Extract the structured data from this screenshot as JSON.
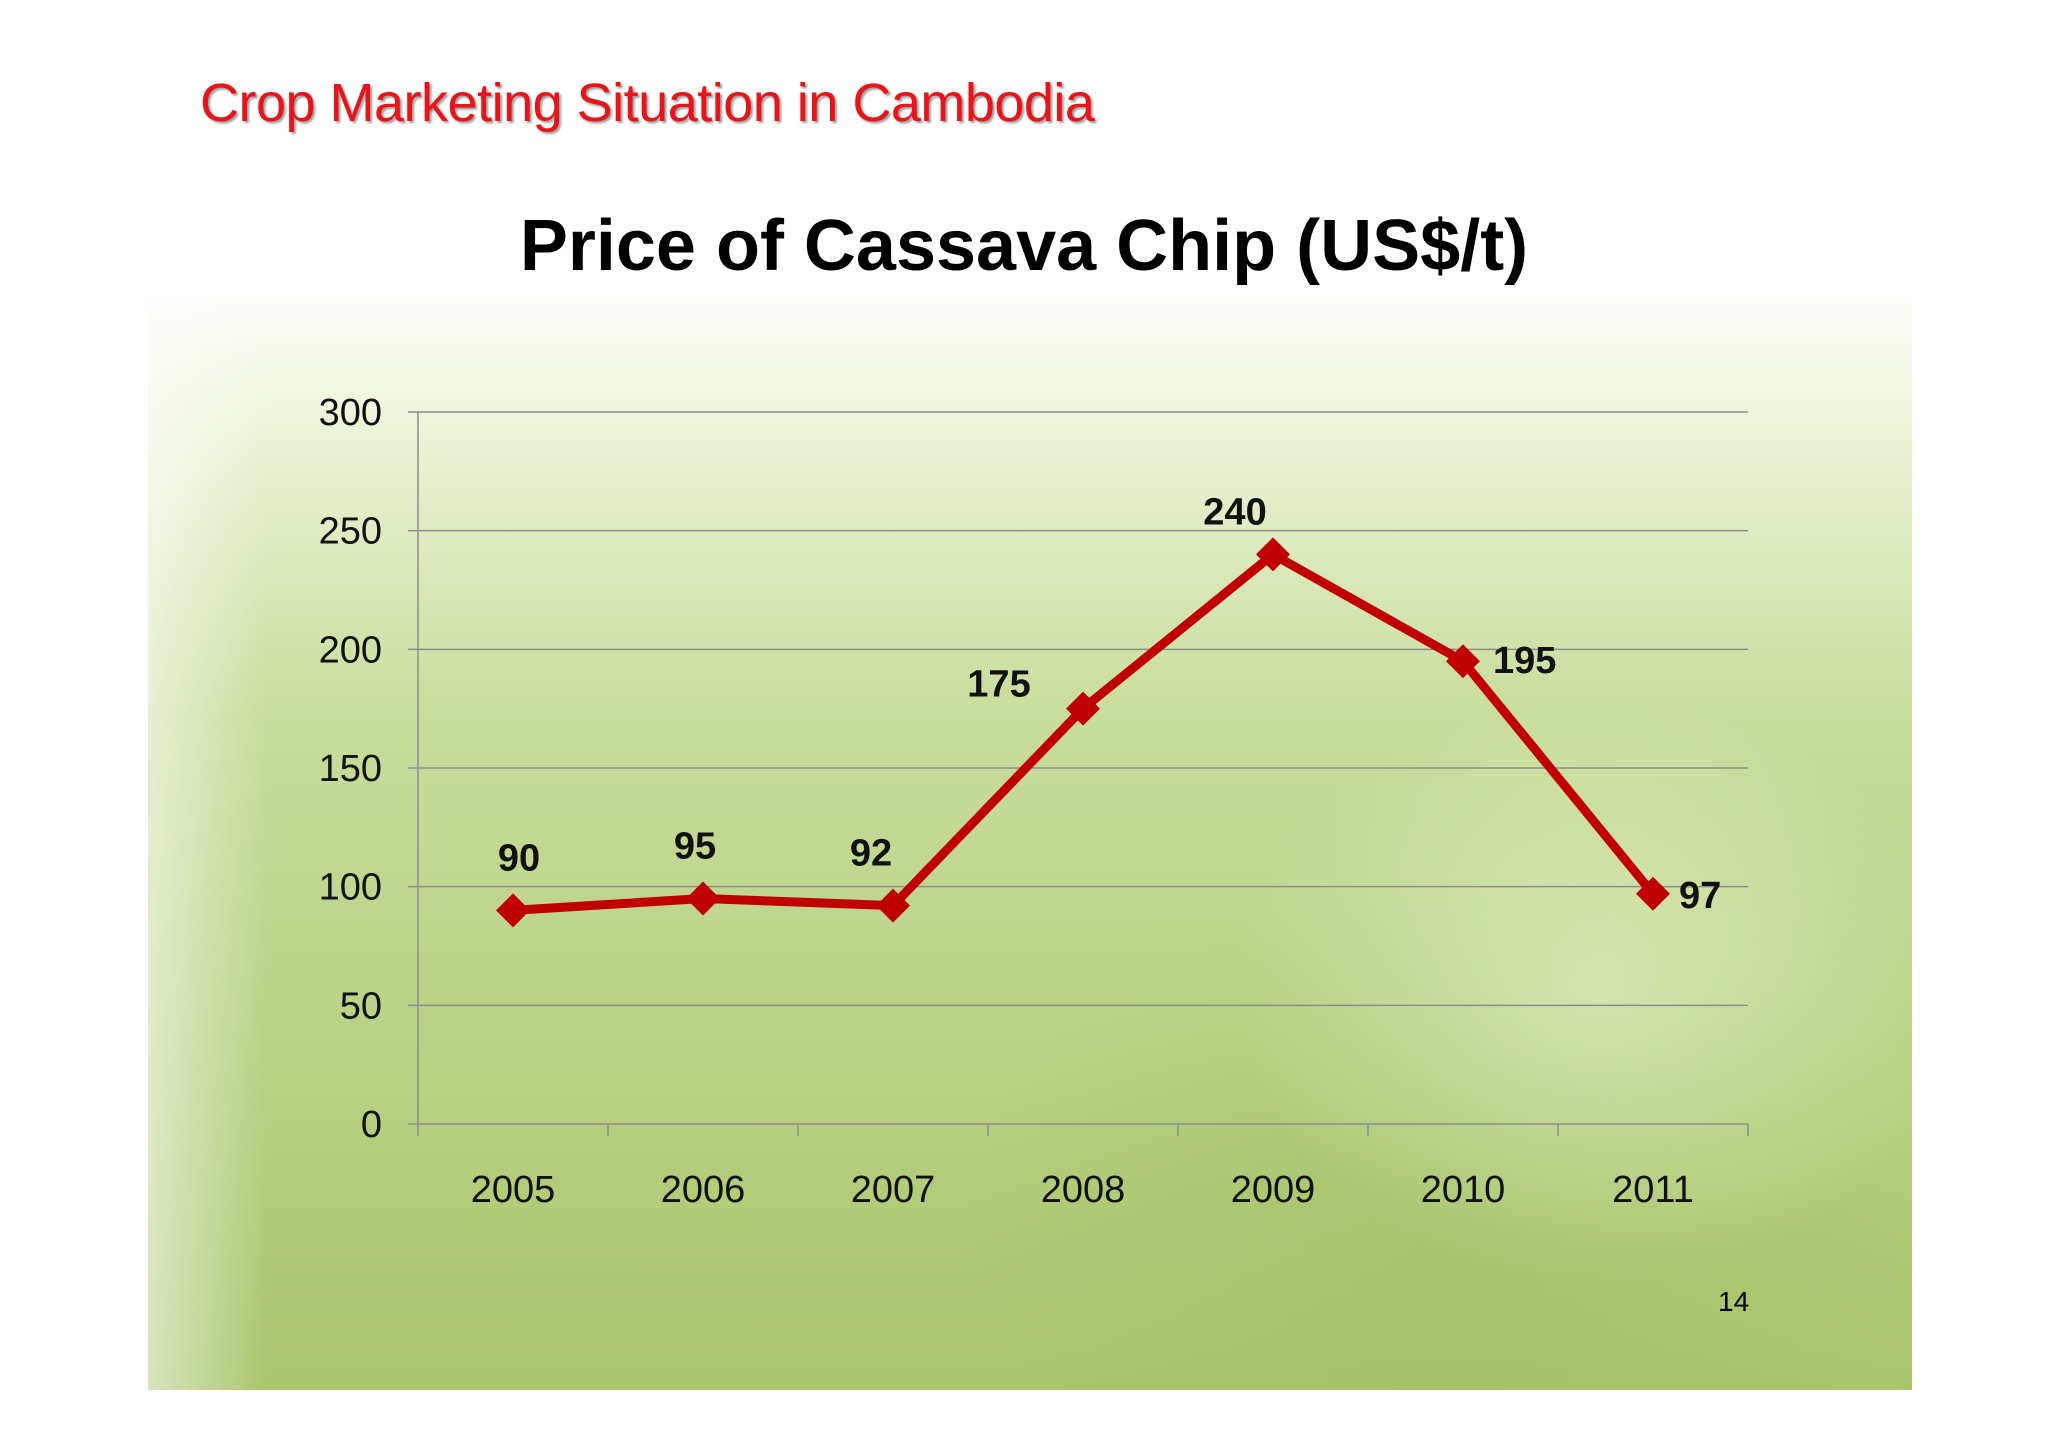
{
  "slide": {
    "heading": "Crop Marketing Situation in Cambodia",
    "page_number": "14"
  },
  "colors": {
    "heading_red": "#e8141a",
    "series_line": "#c00000",
    "gridline": "#8c8c8c",
    "panel_green": "#b5cf7c"
  },
  "chart_data": {
    "type": "line",
    "title": "Price of Cassava Chip (US$/t)",
    "xlabel": "",
    "ylabel": "",
    "categories": [
      "2005",
      "2006",
      "2007",
      "2008",
      "2009",
      "2010",
      "2011"
    ],
    "series": [
      {
        "values": [
          90,
          95,
          92,
          175,
          240,
          195,
          97
        ]
      }
    ],
    "data_labels": [
      "90",
      "95",
      "92",
      "175",
      "240",
      "195",
      "97"
    ],
    "ylim": [
      0,
      300
    ],
    "yticks": [
      0,
      50,
      100,
      150,
      200,
      250,
      300
    ],
    "ytick_labels": [
      "0",
      "50",
      "100",
      "150",
      "200",
      "250",
      "300"
    ],
    "grid": true,
    "legend": "none",
    "marker": "diamond"
  }
}
